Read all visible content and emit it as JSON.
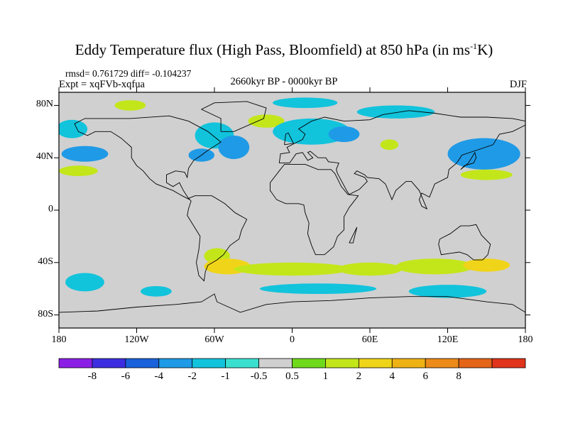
{
  "title": "Eddy Temperature flux (High Pass, Bloomfield) at 850 hPa (in ms",
  "title_sup": "-1",
  "title_end": "K)",
  "stats_line": "rmsd= 0.761729 diff= -0.104237",
  "expt_line": "Expt = xqFVb-xqfua",
  "period": "2660kyr BP - 0000kyr BP",
  "season": "DJF",
  "map": {
    "lon_range": [
      -180,
      180
    ],
    "lat_range": [
      -90,
      90
    ],
    "y_ticks": [
      {
        "value": 80,
        "label": "80N"
      },
      {
        "value": 40,
        "label": "40N"
      },
      {
        "value": 0,
        "label": "0"
      },
      {
        "value": -40,
        "label": "40S"
      },
      {
        "value": -80,
        "label": "80S"
      }
    ],
    "x_ticks": [
      {
        "value": -180,
        "label": "180"
      },
      {
        "value": -120,
        "label": "120W"
      },
      {
        "value": -60,
        "label": "60W"
      },
      {
        "value": 0,
        "label": "0"
      },
      {
        "value": 60,
        "label": "60E"
      },
      {
        "value": 120,
        "label": "120E"
      },
      {
        "value": 180,
        "label": "180"
      }
    ],
    "background_color": "#d0d0d0"
  },
  "colorbar": {
    "colors": [
      "#8b1fe6",
      "#3c2ee0",
      "#1a62dc",
      "#1f9ae6",
      "#12c3dc",
      "#39e0d0",
      "#d0d0d0",
      "#6fd91c",
      "#c3e61a",
      "#f0d41a",
      "#eeb214",
      "#ec8a1a",
      "#e46418",
      "#e0341c"
    ],
    "labels": [
      "-8",
      "-6",
      "-4",
      "-2",
      "-1",
      "-0.5",
      "0.5",
      "1",
      "2",
      "4",
      "6",
      "8"
    ]
  },
  "anomalies": [
    {
      "lon": -170,
      "lat": 62,
      "rx": 12,
      "ry": 7,
      "level": "-1"
    },
    {
      "lon": -160,
      "lat": 43,
      "rx": 18,
      "ry": 6,
      "level": "-2"
    },
    {
      "lon": -165,
      "lat": 30,
      "rx": 15,
      "ry": 4,
      "level": "1"
    },
    {
      "lon": -125,
      "lat": 80,
      "rx": 12,
      "ry": 4,
      "level": "1"
    },
    {
      "lon": -60,
      "lat": 57,
      "rx": 15,
      "ry": 10,
      "level": "-1"
    },
    {
      "lon": -45,
      "lat": 48,
      "rx": 12,
      "ry": 9,
      "level": "-2"
    },
    {
      "lon": -70,
      "lat": 42,
      "rx": 10,
      "ry": 5,
      "level": "-2"
    },
    {
      "lon": -20,
      "lat": 68,
      "rx": 14,
      "ry": 5,
      "level": "1"
    },
    {
      "lon": 15,
      "lat": 60,
      "rx": 30,
      "ry": 10,
      "level": "-1"
    },
    {
      "lon": 40,
      "lat": 58,
      "rx": 12,
      "ry": 6,
      "level": "-2"
    },
    {
      "lon": 10,
      "lat": 82,
      "rx": 25,
      "ry": 4,
      "level": "-1"
    },
    {
      "lon": 75,
      "lat": 50,
      "rx": 7,
      "ry": 4,
      "level": "1"
    },
    {
      "lon": 80,
      "lat": 75,
      "rx": 30,
      "ry": 5,
      "level": "-1"
    },
    {
      "lon": 148,
      "lat": 43,
      "rx": 28,
      "ry": 12,
      "level": "-2"
    },
    {
      "lon": 150,
      "lat": 27,
      "rx": 20,
      "ry": 4,
      "level": "1"
    },
    {
      "lon": -58,
      "lat": -35,
      "rx": 10,
      "ry": 6,
      "level": "1"
    },
    {
      "lon": -50,
      "lat": -43,
      "rx": 18,
      "ry": 6,
      "level": "2"
    },
    {
      "lon": 0,
      "lat": -45,
      "rx": 45,
      "ry": 5,
      "level": "1"
    },
    {
      "lon": 60,
      "lat": -45,
      "rx": 25,
      "ry": 5,
      "level": "1"
    },
    {
      "lon": 110,
      "lat": -43,
      "rx": 30,
      "ry": 6,
      "level": "1"
    },
    {
      "lon": 150,
      "lat": -42,
      "rx": 18,
      "ry": 5,
      "level": "2"
    },
    {
      "lon": 20,
      "lat": -60,
      "rx": 45,
      "ry": 4,
      "level": "-1"
    },
    {
      "lon": 120,
      "lat": -62,
      "rx": 30,
      "ry": 5,
      "level": "-1"
    },
    {
      "lon": -160,
      "lat": -55,
      "rx": 15,
      "ry": 7,
      "level": "-1"
    },
    {
      "lon": -105,
      "lat": -62,
      "rx": 12,
      "ry": 4,
      "level": "-1"
    }
  ]
}
